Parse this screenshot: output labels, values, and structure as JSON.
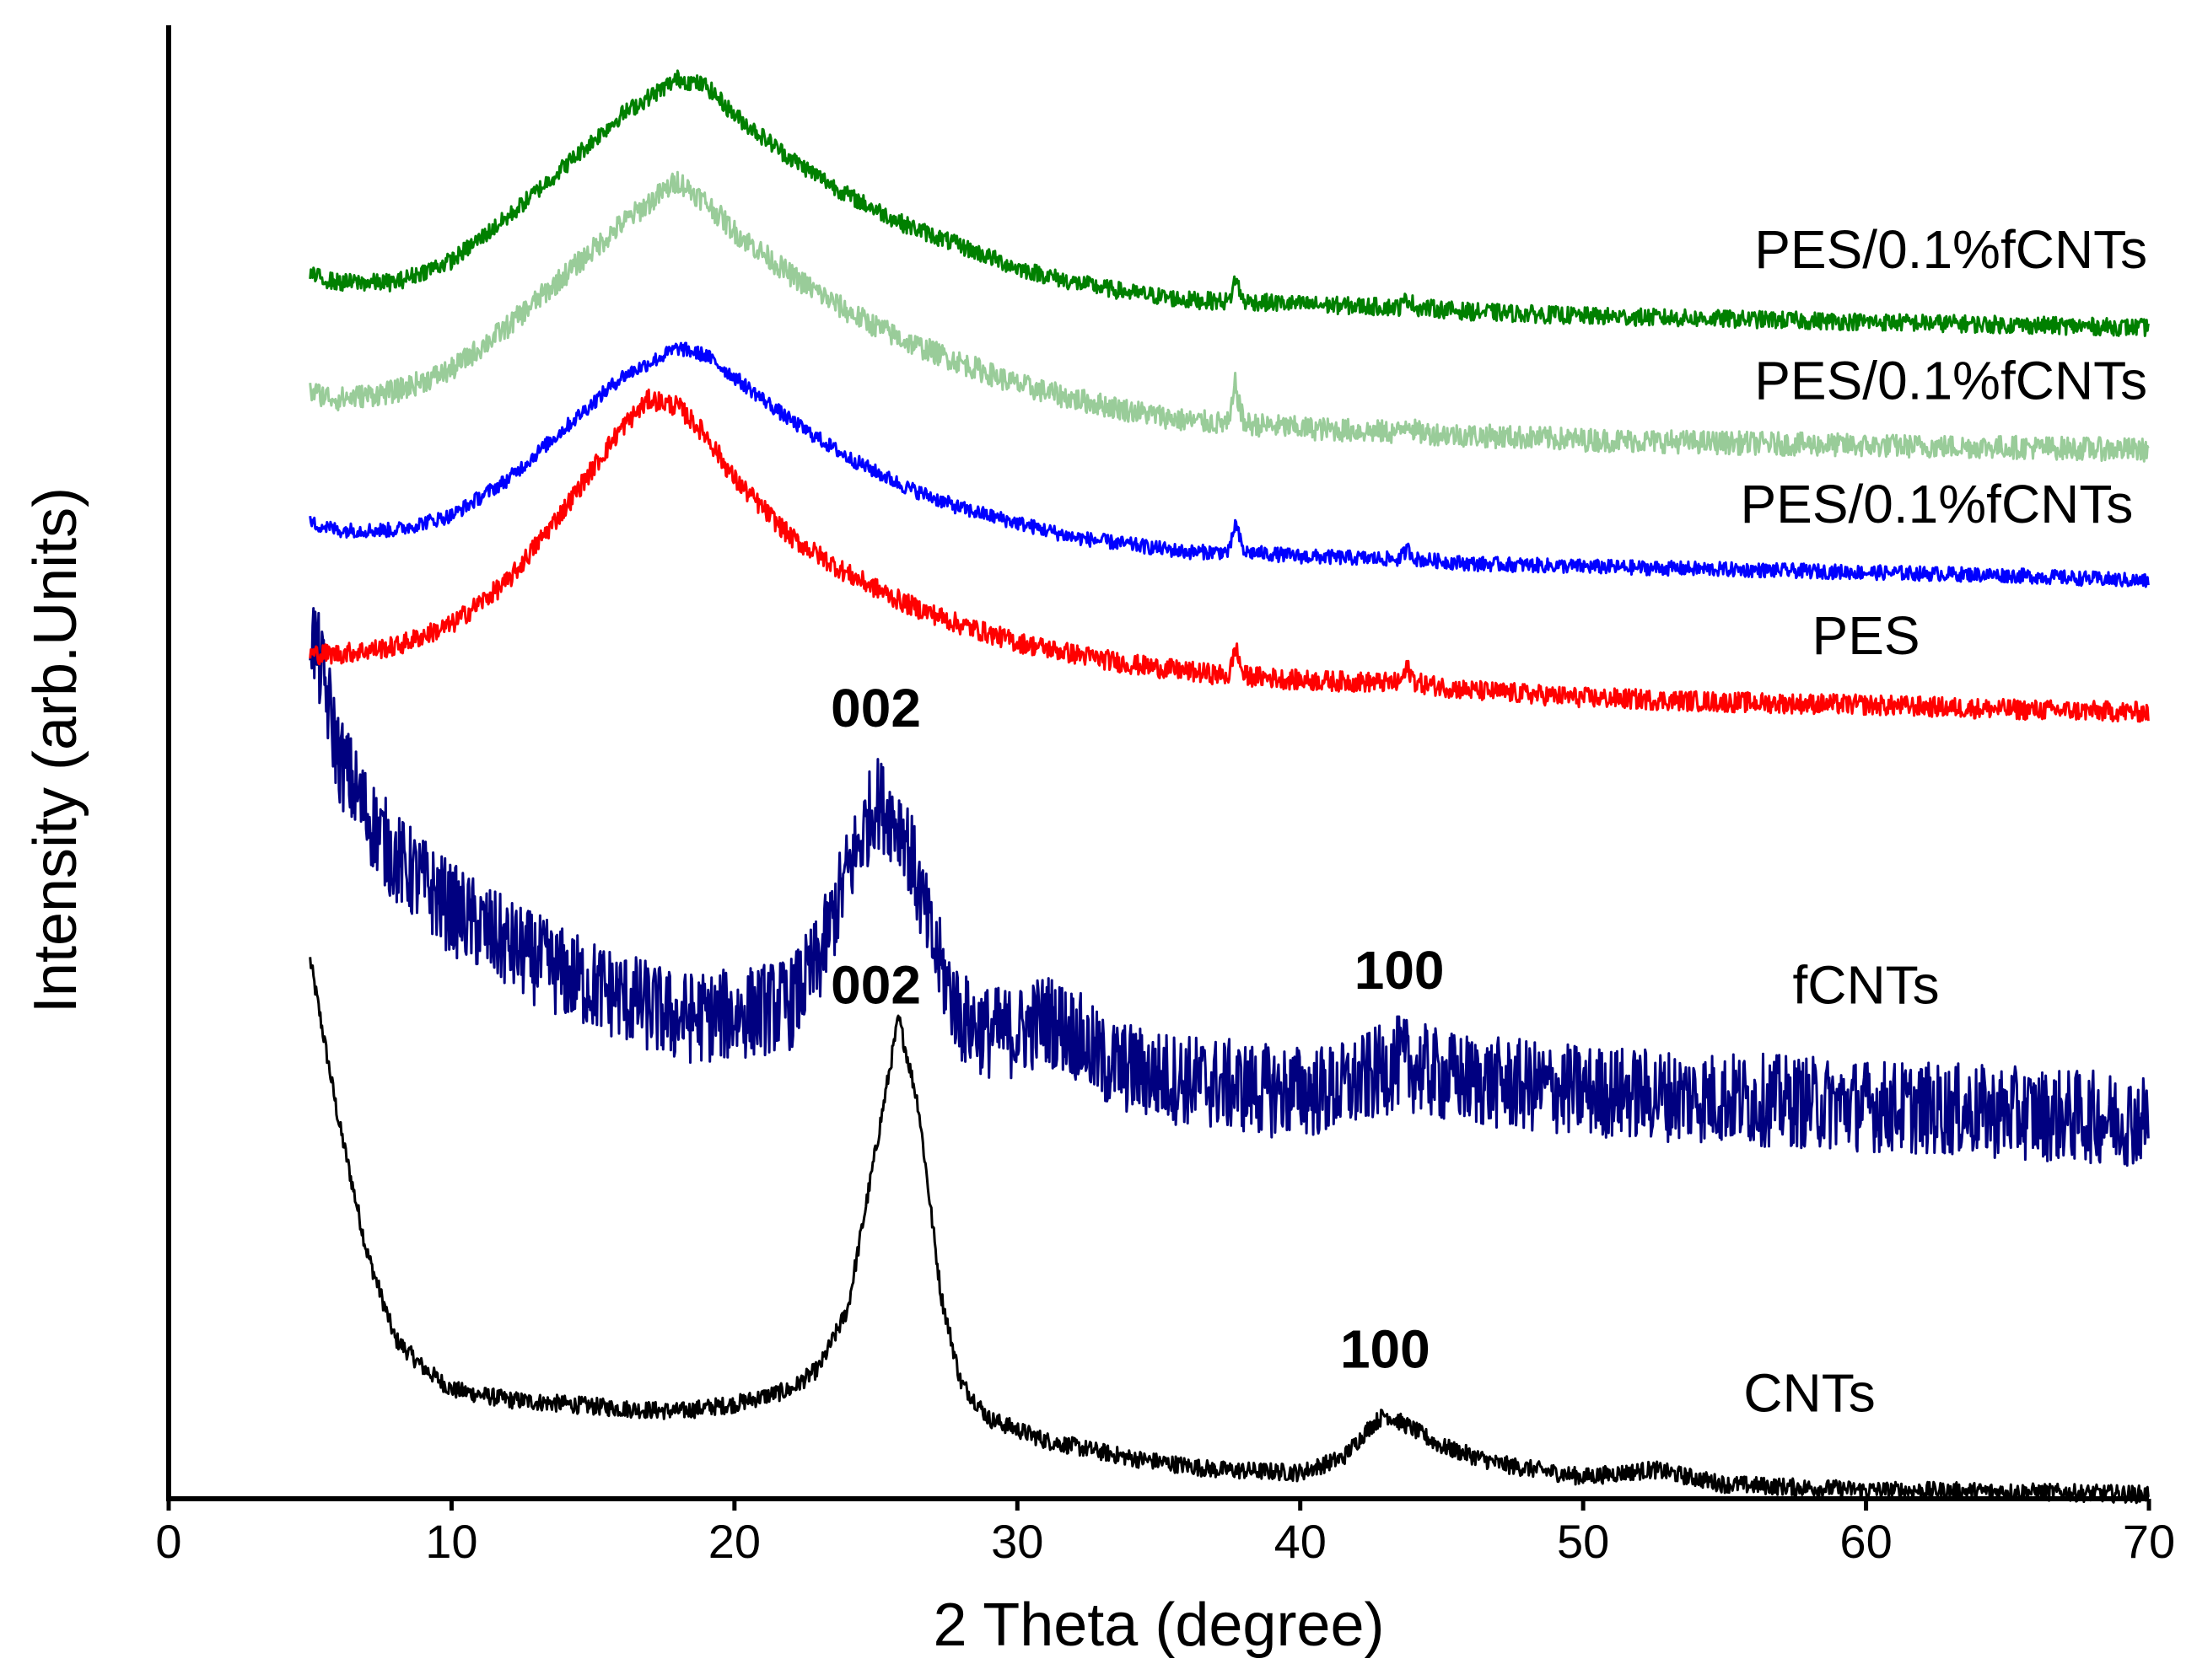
{
  "chart_data": {
    "type": "line",
    "title": "",
    "xlabel": "2 Theta (degree)",
    "ylabel": "Intensity (arb.Units)",
    "xlim": [
      0,
      70
    ],
    "ylim": [
      0,
      100
    ],
    "xticks": [
      0,
      10,
      20,
      30,
      40,
      50,
      60,
      70
    ],
    "grid": false,
    "y_tick_labels_shown": false,
    "series": [
      {
        "name": "CNTs",
        "color": "#000000",
        "noise": 0.6,
        "points": [
          [
            5,
            37
          ],
          [
            6,
            26
          ],
          [
            7,
            17
          ],
          [
            8,
            11
          ],
          [
            9,
            9
          ],
          [
            10,
            7.5
          ],
          [
            12,
            6.8
          ],
          [
            14,
            6.5
          ],
          [
            16,
            6.2
          ],
          [
            18,
            6
          ],
          [
            20,
            6.5
          ],
          [
            22,
            7.5
          ],
          [
            23,
            9
          ],
          [
            24,
            13
          ],
          [
            25,
            24
          ],
          [
            25.8,
            33
          ],
          [
            26.5,
            27
          ],
          [
            27.3,
            14
          ],
          [
            28,
            8
          ],
          [
            29,
            5.5
          ],
          [
            31,
            4
          ],
          [
            34,
            2.8
          ],
          [
            37,
            2
          ],
          [
            40,
            1.8
          ],
          [
            41.5,
            2.8
          ],
          [
            42.5,
            5
          ],
          [
            43,
            5.8
          ],
          [
            43.8,
            5
          ],
          [
            45,
            3.6
          ],
          [
            47,
            2.4
          ],
          [
            50,
            1.5
          ],
          [
            52.5,
            2
          ],
          [
            55,
            1
          ],
          [
            60,
            0.6
          ],
          [
            65,
            0.5
          ],
          [
            70,
            0.3
          ]
        ]
      },
      {
        "name": "fCNTs",
        "color": "#000080",
        "noise": 3.2,
        "points": [
          [
            5,
            60
          ],
          [
            5.5,
            56
          ],
          [
            6,
            51
          ],
          [
            7,
            47
          ],
          [
            8,
            44
          ],
          [
            10,
            40.5
          ],
          [
            12,
            38
          ],
          [
            14,
            36
          ],
          [
            16,
            34.5
          ],
          [
            18,
            33
          ],
          [
            20,
            33.2
          ],
          [
            22,
            34
          ],
          [
            23,
            37
          ],
          [
            24,
            43
          ],
          [
            25,
            48
          ],
          [
            26,
            46
          ],
          [
            27,
            38
          ],
          [
            28,
            33
          ],
          [
            29,
            32
          ],
          [
            30,
            32
          ],
          [
            31,
            33
          ],
          [
            32,
            32
          ],
          [
            33,
            30
          ],
          [
            35,
            29
          ],
          [
            37,
            28.5
          ],
          [
            39,
            28
          ],
          [
            41,
            28
          ],
          [
            42,
            28.5
          ],
          [
            43.5,
            30
          ],
          [
            45,
            29
          ],
          [
            47,
            28.5
          ],
          [
            50,
            28
          ],
          [
            55,
            27.5
          ],
          [
            60,
            27
          ],
          [
            65,
            26.5
          ],
          [
            70,
            26
          ]
        ]
      },
      {
        "name": "PES",
        "color": "#ff0000",
        "noise": 0.7,
        "points": [
          [
            5,
            58
          ],
          [
            6,
            58
          ],
          [
            8,
            58.5
          ],
          [
            10,
            60
          ],
          [
            12,
            63
          ],
          [
            14,
            68
          ],
          [
            16,
            73.5
          ],
          [
            17,
            75.5
          ],
          [
            18,
            75
          ],
          [
            19,
            73
          ],
          [
            20,
            70
          ],
          [
            22,
            66
          ],
          [
            24,
            63.5
          ],
          [
            26,
            61.5
          ],
          [
            28,
            60
          ],
          [
            30,
            58.8
          ],
          [
            32,
            58
          ],
          [
            34,
            57.3
          ],
          [
            36,
            56.8
          ],
          [
            37.5,
            56.5
          ],
          [
            37.7,
            58.5
          ],
          [
            38,
            56.5
          ],
          [
            40,
            56.2
          ],
          [
            43.5,
            56
          ],
          [
            43.8,
            57
          ],
          [
            44.1,
            56
          ],
          [
            46,
            55.5
          ],
          [
            50,
            55
          ],
          [
            55,
            54.7
          ],
          [
            60,
            54.5
          ],
          [
            65,
            54.2
          ],
          [
            70,
            54
          ]
        ]
      },
      {
        "name": "PES/0.1%fCNTs",
        "color": "#0000ff",
        "noise": 0.5,
        "points": [
          [
            5,
            67
          ],
          [
            6,
            66.5
          ],
          [
            8,
            66.5
          ],
          [
            10,
            67.5
          ],
          [
            12,
            70
          ],
          [
            14,
            73.5
          ],
          [
            16,
            77
          ],
          [
            18,
            79
          ],
          [
            19,
            78.5
          ],
          [
            20,
            77
          ],
          [
            22,
            74
          ],
          [
            24,
            71.5
          ],
          [
            26,
            69.5
          ],
          [
            28,
            68
          ],
          [
            30,
            67
          ],
          [
            32,
            66
          ],
          [
            34,
            65.5
          ],
          [
            36,
            65
          ],
          [
            37.5,
            65
          ],
          [
            37.7,
            67
          ],
          [
            38,
            65
          ],
          [
            40,
            64.7
          ],
          [
            43.5,
            64.5
          ],
          [
            43.8,
            65.2
          ],
          [
            44.1,
            64.5
          ],
          [
            46,
            64.2
          ],
          [
            50,
            64
          ],
          [
            55,
            63.8
          ],
          [
            60,
            63.6
          ],
          [
            65,
            63.4
          ],
          [
            70,
            63
          ]
        ]
      },
      {
        "name": "PES/0.1%fCNTs",
        "color": "#99cc99",
        "noise": 0.8,
        "points": [
          [
            5,
            76
          ],
          [
            6,
            75.5
          ],
          [
            8,
            76
          ],
          [
            10,
            77.5
          ],
          [
            12,
            80.5
          ],
          [
            14,
            84
          ],
          [
            16,
            87.5
          ],
          [
            18,
            90.5
          ],
          [
            19,
            89
          ],
          [
            20,
            87
          ],
          [
            22,
            84
          ],
          [
            24,
            81.5
          ],
          [
            26,
            79.5
          ],
          [
            28,
            78
          ],
          [
            30,
            76.5
          ],
          [
            32,
            75.5
          ],
          [
            34,
            74.7
          ],
          [
            36,
            74
          ],
          [
            37.5,
            73.8
          ],
          [
            37.7,
            76.5
          ],
          [
            38,
            73.8
          ],
          [
            40,
            73.5
          ],
          [
            43.5,
            73.2
          ],
          [
            43.8,
            74
          ],
          [
            44.1,
            73.2
          ],
          [
            46,
            73
          ],
          [
            50,
            72.7
          ],
          [
            55,
            72.5
          ],
          [
            60,
            72.3
          ],
          [
            65,
            72.2
          ],
          [
            70,
            72
          ]
        ]
      },
      {
        "name": "PES/0.1%fCNTs",
        "color": "#008000",
        "noise": 0.6,
        "points": [
          [
            5,
            84
          ],
          [
            6,
            83.5
          ],
          [
            8,
            83.5
          ],
          [
            10,
            85
          ],
          [
            12,
            88
          ],
          [
            14,
            91.5
          ],
          [
            16,
            95
          ],
          [
            18,
            97.5
          ],
          [
            19,
            97
          ],
          [
            20,
            95
          ],
          [
            22,
            92
          ],
          [
            24,
            89.5
          ],
          [
            26,
            87.5
          ],
          [
            28,
            86
          ],
          [
            30,
            84.5
          ],
          [
            32,
            83.5
          ],
          [
            34,
            82.8
          ],
          [
            36,
            82.3
          ],
          [
            37.5,
            82.2
          ],
          [
            37.7,
            83.8
          ],
          [
            38,
            82.2
          ],
          [
            40,
            82
          ],
          [
            43.5,
            81.8
          ],
          [
            43.8,
            82.4
          ],
          [
            44.1,
            81.8
          ],
          [
            46,
            81.5
          ],
          [
            50,
            81.2
          ],
          [
            55,
            81
          ],
          [
            60,
            80.8
          ],
          [
            65,
            80.6
          ],
          [
            70,
            80.4
          ]
        ]
      }
    ],
    "annotations": [
      {
        "text": "002",
        "x": 25,
        "y": 53
      },
      {
        "text": "002",
        "x": 25,
        "y": 34
      },
      {
        "text": "100",
        "x": 43.5,
        "y": 35
      },
      {
        "text": "100",
        "x": 43,
        "y": 9
      }
    ],
    "series_labels": [
      {
        "text": "PES/0.1%fCNTs",
        "x": 63,
        "y": 84.5
      },
      {
        "text": "PES/0.1%fCNTs",
        "x": 63,
        "y": 75.5
      },
      {
        "text": "PES/0.1%fCNTs",
        "x": 62.5,
        "y": 67
      },
      {
        "text": "PES",
        "x": 60,
        "y": 58
      },
      {
        "text": "fCNTs",
        "x": 60,
        "y": 34
      },
      {
        "text": "CNTs",
        "x": 58,
        "y": 6
      }
    ]
  }
}
